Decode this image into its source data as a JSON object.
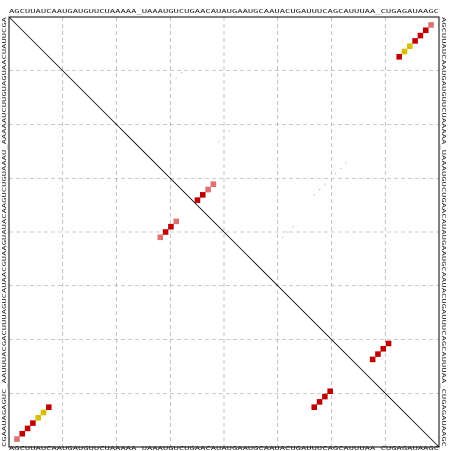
{
  "plot": {
    "sequence": "AGCUUAUCAAUGAUGUUCUAAAAA_UAAAUGUCUGAACAUAUGAAUGCAAUACUGAUUUCAGCAUUUAA_CUGAGAUAAGC",
    "reverse_sequence": "CGAAUAGAGUC_AAUUUACGACUUUAGUCAUAACGUAAGUAUACAAGUCUGUAAAU_AAAAAUCUUGUAGUAACUAUUCGA",
    "colors": {
      "high": "#c00000",
      "mid": "#d4c000",
      "low": "#e07070",
      "grid": "#999999",
      "diagonal": "#000000",
      "frame": "#000000"
    },
    "grid_divisions": 8
  },
  "chart_data": {
    "type": "dot-plot",
    "description_free": true,
    "dots": [
      {
        "i": 2,
        "j": 2,
        "level": "low"
      },
      {
        "i": 3,
        "j": 3,
        "level": "high"
      },
      {
        "i": 4,
        "j": 4,
        "level": "high"
      },
      {
        "i": 5,
        "j": 5,
        "level": "high"
      },
      {
        "i": 6,
        "j": 6,
        "level": "mid"
      },
      {
        "i": 7,
        "j": 7,
        "level": "mid"
      },
      {
        "i": 8,
        "j": 8,
        "level": "high"
      },
      {
        "i": 80,
        "j": 80,
        "level": "low"
      },
      {
        "i": 79,
        "j": 79,
        "level": "high"
      },
      {
        "i": 78,
        "j": 78,
        "level": "high"
      },
      {
        "i": 77,
        "j": 77,
        "level": "high"
      },
      {
        "i": 76,
        "j": 76,
        "level": "mid"
      },
      {
        "i": 75,
        "j": 75,
        "level": "mid"
      },
      {
        "i": 74,
        "j": 74,
        "level": "high"
      },
      {
        "i": 69,
        "j": 17,
        "level": "high"
      },
      {
        "i": 70,
        "j": 18,
        "level": "high"
      },
      {
        "i": 71,
        "j": 19,
        "level": "high"
      },
      {
        "i": 72,
        "j": 20,
        "level": "high"
      },
      {
        "i": 58,
        "j": 8,
        "level": "high"
      },
      {
        "i": 59,
        "j": 9,
        "level": "high"
      },
      {
        "i": 60,
        "j": 10,
        "level": "high"
      },
      {
        "i": 61,
        "j": 11,
        "level": "high"
      },
      {
        "i": 36,
        "j": 47,
        "level": "high"
      },
      {
        "i": 37,
        "j": 48,
        "level": "high"
      },
      {
        "i": 38,
        "j": 49,
        "level": "low"
      },
      {
        "i": 39,
        "j": 50,
        "level": "low"
      },
      {
        "i": 29,
        "j": 40,
        "level": "low"
      },
      {
        "i": 30,
        "j": 41,
        "level": "high"
      },
      {
        "i": 31,
        "j": 42,
        "level": "high"
      },
      {
        "i": 32,
        "j": 43,
        "level": "low"
      }
    ],
    "faint_dots": [
      {
        "i": 31,
        "j": 69
      },
      {
        "i": 32,
        "j": 70
      },
      {
        "i": 33,
        "j": 71
      },
      {
        "i": 40,
        "j": 58
      },
      {
        "i": 41,
        "j": 59
      },
      {
        "i": 42,
        "j": 60
      },
      {
        "i": 52,
        "j": 40
      },
      {
        "i": 53,
        "j": 41
      },
      {
        "i": 54,
        "j": 42
      },
      {
        "i": 58,
        "j": 48
      },
      {
        "i": 59,
        "j": 49
      },
      {
        "i": 60,
        "j": 50
      },
      {
        "i": 62,
        "j": 52
      },
      {
        "i": 63,
        "j": 53
      },
      {
        "i": 64,
        "j": 54
      }
    ]
  }
}
